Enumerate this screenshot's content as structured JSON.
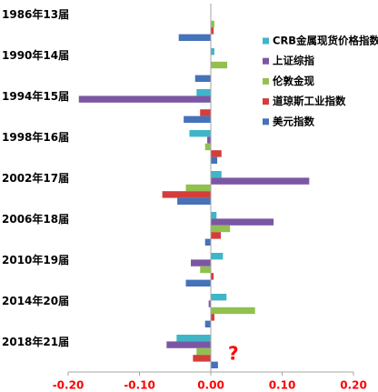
{
  "chart_data": {
    "type": "bar",
    "orientation": "horizontal",
    "categories": [
      "1986年13届",
      "1990年14届",
      "1994年15届",
      "1998年16届",
      "2002年17届",
      "2006年18届",
      "2010年19届",
      "2014年20届",
      "2018年21届"
    ],
    "series": [
      {
        "name": "CRB金属现货价格指数",
        "color": "#3fb5c8",
        "values": [
          0.0,
          0.005,
          -0.02,
          -0.03,
          0.015,
          0.008,
          0.017,
          0.022,
          -0.048
        ]
      },
      {
        "name": "上证综指",
        "color": "#7b57a3",
        "values": [
          0.0,
          0.0,
          -0.185,
          -0.005,
          0.138,
          0.088,
          -0.028,
          -0.003,
          -0.062
        ]
      },
      {
        "name": "伦敦金现",
        "color": "#92c050",
        "values": [
          0.005,
          0.023,
          0.0,
          -0.008,
          -0.035,
          0.027,
          -0.015,
          0.062,
          -0.02
        ]
      },
      {
        "name": "道琼斯工业指数",
        "color": "#d43d3a",
        "values": [
          0.004,
          0.0,
          -0.015,
          0.015,
          -0.068,
          0.014,
          0.004,
          0.005,
          -0.025
        ]
      },
      {
        "name": "美元指数",
        "color": "#4572b8",
        "values": [
          -0.045,
          -0.022,
          -0.038,
          0.009,
          -0.047,
          -0.008,
          -0.035,
          -0.008,
          0.01
        ]
      }
    ],
    "xlim": [
      -0.2,
      0.2
    ],
    "xticks": [
      "-0.20",
      "-0.10",
      "0.00",
      "0.10",
      "0.20"
    ],
    "legend_position": "right",
    "annotation": "?",
    "title": "",
    "xlabel": "",
    "ylabel": ""
  }
}
